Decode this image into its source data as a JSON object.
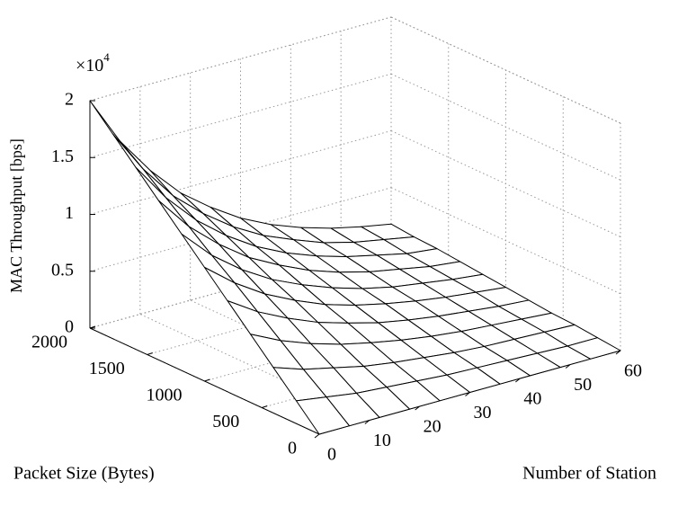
{
  "chart_data": {
    "type": "surface",
    "x_label": "Number of Station",
    "y_label": "Packet Size (Bytes)",
    "z_label": "MAC Throughput [bps]",
    "z_multiplier": {
      "base": "×10",
      "exponent": "4"
    },
    "x": [
      0,
      6,
      12,
      18,
      24,
      30,
      36,
      42,
      48,
      54,
      60
    ],
    "y": [
      0,
      200,
      400,
      600,
      800,
      1000,
      1200,
      1400,
      1600,
      1800,
      2000
    ],
    "z": [
      [
        0,
        0,
        0,
        0,
        0,
        0,
        0,
        0,
        0,
        0,
        0
      ],
      [
        0.2,
        0.16,
        0.12,
        0.1,
        0.08,
        0.06,
        0.05,
        0.04,
        0.03,
        0.02,
        0.02
      ],
      [
        0.4,
        0.31,
        0.25,
        0.19,
        0.15,
        0.12,
        0.09,
        0.07,
        0.06,
        0.05,
        0.04
      ],
      [
        0.6,
        0.47,
        0.37,
        0.29,
        0.23,
        0.18,
        0.14,
        0.11,
        0.09,
        0.07,
        0.05
      ],
      [
        0.8,
        0.63,
        0.5,
        0.39,
        0.31,
        0.24,
        0.19,
        0.15,
        0.12,
        0.09,
        0.07
      ],
      [
        1,
        0.79,
        0.62,
        0.49,
        0.38,
        0.3,
        0.24,
        0.19,
        0.15,
        0.12,
        0.09
      ],
      [
        1.2,
        0.94,
        0.74,
        0.58,
        0.46,
        0.36,
        0.28,
        0.22,
        0.18,
        0.14,
        0.11
      ],
      [
        1.4,
        1.1,
        0.87,
        0.68,
        0.54,
        0.42,
        0.33,
        0.26,
        0.21,
        0.16,
        0.13
      ],
      [
        1.6,
        1.26,
        0.99,
        0.78,
        0.61,
        0.48,
        0.38,
        0.3,
        0.24,
        0.18,
        0.15
      ],
      [
        1.8,
        1.42,
        1.11,
        0.88,
        0.69,
        0.54,
        0.43,
        0.33,
        0.26,
        0.21,
        0.16
      ],
      [
        2,
        1.57,
        1.24,
        0.97,
        0.77,
        0.6,
        0.47,
        0.37,
        0.29,
        0.23,
        0.18
      ]
    ],
    "xlim": [
      0,
      60
    ],
    "xticks": [
      0,
      10,
      20,
      30,
      40,
      50,
      60
    ],
    "ylim": [
      0,
      2000
    ],
    "yticks": [
      0,
      500,
      1000,
      1500,
      2000
    ],
    "zlim": [
      0,
      2
    ],
    "zticks": [
      0,
      0.5,
      1,
      1.5,
      2
    ],
    "grid": true,
    "mesh_color": "#000000"
  }
}
